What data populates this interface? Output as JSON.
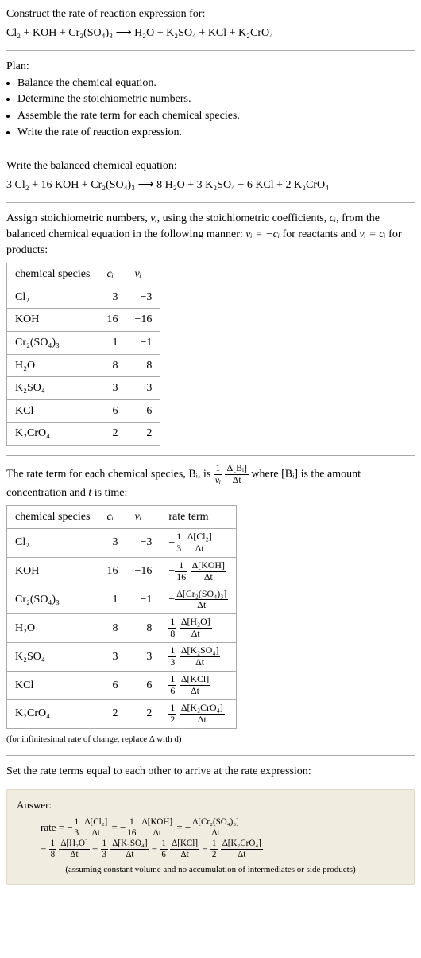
{
  "header": {
    "prompt": "Construct the rate of reaction expression for:",
    "unbalanced": "Cl₂ + KOH + Cr₂(SO₄)₃  ⟶  H₂O + K₂SO₄ + KCl + K₂CrO₄"
  },
  "plan": {
    "title": "Plan:",
    "items": [
      "Balance the chemical equation.",
      "Determine the stoichiometric numbers.",
      "Assemble the rate term for each chemical species.",
      "Write the rate of reaction expression."
    ]
  },
  "balanced": {
    "intro": "Write the balanced chemical equation:",
    "eq": "3 Cl₂ + 16 KOH + Cr₂(SO₄)₃  ⟶  8 H₂O + 3 K₂SO₄ + 6 KCl + 2 K₂CrO₄"
  },
  "assign": {
    "text1": "Assign stoichiometric numbers, ",
    "nu": "νᵢ",
    "text2": ", using the stoichiometric coefficients, ",
    "ci": "cᵢ",
    "text3": ", from the balanced chemical equation in the following manner: ",
    "rule1": "νᵢ = −cᵢ",
    "text4": " for reactants and ",
    "rule2": "νᵢ = cᵢ",
    "text5": " for products:"
  },
  "table1": {
    "headers": [
      "chemical species",
      "cᵢ",
      "νᵢ"
    ],
    "rows": [
      [
        "Cl₂",
        "3",
        "−3"
      ],
      [
        "KOH",
        "16",
        "−16"
      ],
      [
        "Cr₂(SO₄)₃",
        "1",
        "−1"
      ],
      [
        "H₂O",
        "8",
        "8"
      ],
      [
        "K₂SO₄",
        "3",
        "3"
      ],
      [
        "KCl",
        "6",
        "6"
      ],
      [
        "K₂CrO₄",
        "2",
        "2"
      ]
    ]
  },
  "ratetext": {
    "p1": "The rate term for each chemical species, Bᵢ, is ",
    "frac1_num": "1",
    "frac1_den": "νᵢ",
    "frac2_num": "Δ[Bᵢ]",
    "frac2_den": "Δt",
    "p2": " where [Bᵢ] is the amount concentration and ",
    "tvar": "t",
    "p3": " is time:"
  },
  "table2": {
    "headers": [
      "chemical species",
      "cᵢ",
      "νᵢ",
      "rate term"
    ],
    "rows": [
      {
        "sp": "Cl₂",
        "c": "3",
        "nu": "−3",
        "sign": "−",
        "a": "1",
        "b": "3",
        "top": "Δ[Cl₂]",
        "bot": "Δt"
      },
      {
        "sp": "KOH",
        "c": "16",
        "nu": "−16",
        "sign": "−",
        "a": "1",
        "b": "16",
        "top": "Δ[KOH]",
        "bot": "Δt"
      },
      {
        "sp": "Cr₂(SO₄)₃",
        "c": "1",
        "nu": "−1",
        "sign": "−",
        "a": "",
        "b": "",
        "top": "Δ[Cr₂(SO₄)₃]",
        "bot": "Δt"
      },
      {
        "sp": "H₂O",
        "c": "8",
        "nu": "8",
        "sign": "",
        "a": "1",
        "b": "8",
        "top": "Δ[H₂O]",
        "bot": "Δt"
      },
      {
        "sp": "K₂SO₄",
        "c": "3",
        "nu": "3",
        "sign": "",
        "a": "1",
        "b": "3",
        "top": "Δ[K₂SO₄]",
        "bot": "Δt"
      },
      {
        "sp": "KCl",
        "c": "6",
        "nu": "6",
        "sign": "",
        "a": "1",
        "b": "6",
        "top": "Δ[KCl]",
        "bot": "Δt"
      },
      {
        "sp": "K₂CrO₄",
        "c": "2",
        "nu": "2",
        "sign": "",
        "a": "1",
        "b": "2",
        "top": "Δ[K₂CrO₄]",
        "bot": "Δt"
      }
    ]
  },
  "infinitesimal": "(for infinitesimal rate of change, replace Δ with d)",
  "setequal": "Set the rate terms equal to each other to arrive at the rate expression:",
  "answer": {
    "label": "Answer:",
    "line1_prefix": "rate = ",
    "terms1": [
      {
        "sign": "−",
        "a": "1",
        "b": "3",
        "top": "Δ[Cl₂]",
        "bot": "Δt"
      },
      {
        "sign": "−",
        "a": "1",
        "b": "16",
        "top": "Δ[KOH]",
        "bot": "Δt"
      },
      {
        "sign": "−",
        "a": "",
        "b": "",
        "top": "Δ[Cr₂(SO₄)₃]",
        "bot": "Δt"
      }
    ],
    "line2_prefix": "= ",
    "terms2": [
      {
        "sign": "",
        "a": "1",
        "b": "8",
        "top": "Δ[H₂O]",
        "bot": "Δt"
      },
      {
        "sign": "",
        "a": "1",
        "b": "3",
        "top": "Δ[K₂SO₄]",
        "bot": "Δt"
      },
      {
        "sign": "",
        "a": "1",
        "b": "6",
        "top": "Δ[KCl]",
        "bot": "Δt"
      },
      {
        "sign": "",
        "a": "1",
        "b": "2",
        "top": "Δ[K₂CrO₄]",
        "bot": "Δt"
      }
    ],
    "note": "(assuming constant volume and no accumulation of intermediates or side products)"
  },
  "colors": {
    "rule": "#aaaaaa",
    "answer_bg": "#f1ece0",
    "answer_border": "#e0d8c6"
  }
}
